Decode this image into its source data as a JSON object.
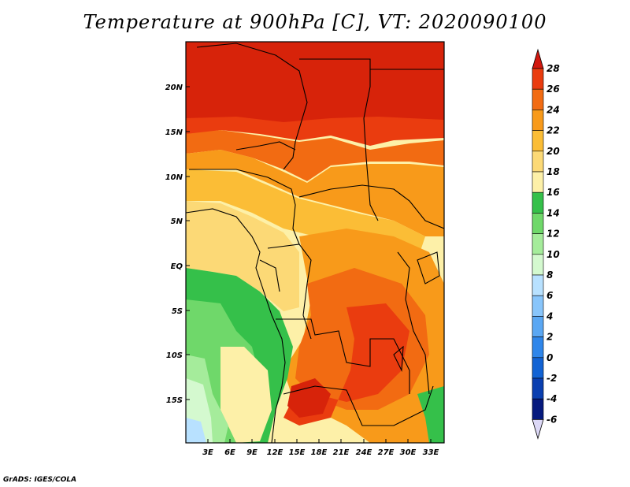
{
  "title": "Temperature at 900hPa [C], VT: 2020090100",
  "credit": "GrADS: IGES/COLA",
  "map": {
    "lat_labels": [
      "20N",
      "15N",
      "10N",
      "5N",
      "EQ",
      "5S",
      "10S",
      "15S"
    ],
    "lon_labels": [
      "3E",
      "6E",
      "9E",
      "12E",
      "15E",
      "18E",
      "21E",
      "24E",
      "27E",
      "30E",
      "33E"
    ]
  },
  "colorbar": {
    "labels": [
      "28",
      "26",
      "24",
      "22",
      "20",
      "18",
      "16",
      "14",
      "12",
      "10",
      "8",
      "6",
      "4",
      "2",
      "0",
      "-2",
      "-4",
      "-6"
    ],
    "colors": [
      "#d7230a",
      "#ea3c0f",
      "#f26b12",
      "#f89a1a",
      "#fbbd36",
      "#fcd976",
      "#fdf0a8",
      "#35c04a",
      "#6fd86a",
      "#a5ec9b",
      "#d4f9cf",
      "#b8e1ff",
      "#88c5fb",
      "#5aa7f3",
      "#2f86ea",
      "#1263d4",
      "#0a3fb0",
      "#061a7e"
    ],
    "top_arrow_color": "#d1180e",
    "bottom_arrow_color": "#dcd8f6"
  }
}
